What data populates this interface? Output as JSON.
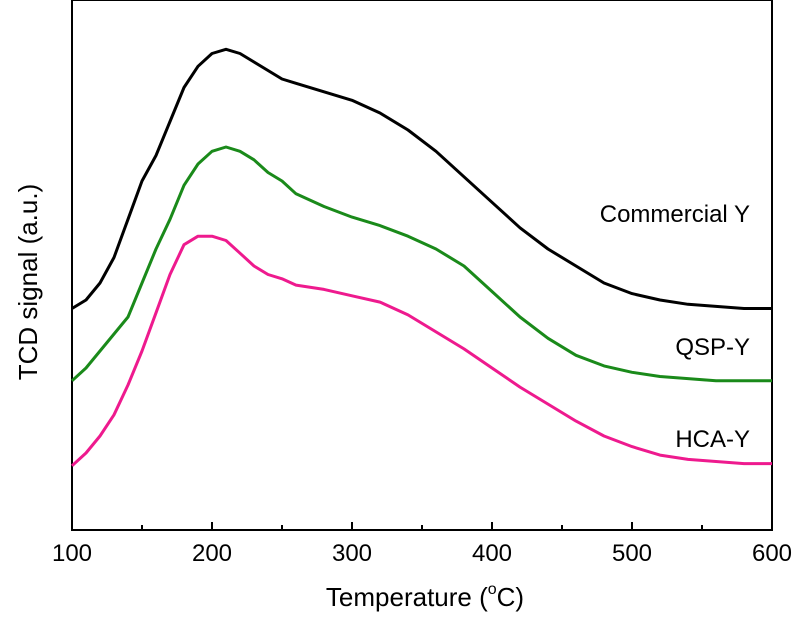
{
  "chart_data": {
    "type": "line",
    "xlabel": "Temperature (°C)",
    "xlabel_main": "Temperature (",
    "xlabel_sup": "o",
    "xlabel_unit": "C)",
    "ylabel": "TCD signal (a.u.)",
    "xlim": [
      100,
      600
    ],
    "ylim": [
      0,
      10
    ],
    "x_ticks": [
      100,
      200,
      300,
      400,
      500,
      600
    ],
    "x_tick_labels": [
      "100",
      "200",
      "300",
      "400",
      "500",
      "600"
    ],
    "y_ticks_shown": false,
    "grid": false,
    "legend": "none",
    "series": [
      {
        "name": "Commercial Y",
        "color": "#000000",
        "x": [
          100,
          110,
          120,
          130,
          140,
          150,
          160,
          170,
          180,
          190,
          200,
          210,
          220,
          230,
          240,
          250,
          260,
          280,
          300,
          320,
          340,
          360,
          380,
          400,
          420,
          440,
          460,
          480,
          500,
          520,
          540,
          560,
          580,
          600
        ],
        "y": [
          4.2,
          4.4,
          4.8,
          5.4,
          6.3,
          7.2,
          7.8,
          8.6,
          9.4,
          9.9,
          10.2,
          10.3,
          10.2,
          10.0,
          9.8,
          9.6,
          9.5,
          9.3,
          9.1,
          8.8,
          8.4,
          7.9,
          7.3,
          6.7,
          6.1,
          5.6,
          5.2,
          4.8,
          4.55,
          4.4,
          4.3,
          4.25,
          4.2,
          4.2
        ]
      },
      {
        "name": "QSP-Y",
        "color": "#1a8a1a",
        "x": [
          100,
          110,
          120,
          130,
          140,
          150,
          160,
          170,
          180,
          190,
          200,
          210,
          220,
          230,
          240,
          250,
          260,
          280,
          300,
          320,
          340,
          360,
          380,
          400,
          420,
          440,
          460,
          480,
          500,
          520,
          540,
          560,
          580,
          600
        ],
        "y": [
          2.5,
          2.8,
          3.2,
          3.6,
          4.0,
          4.8,
          5.6,
          6.3,
          7.1,
          7.6,
          7.9,
          8.0,
          7.9,
          7.7,
          7.4,
          7.2,
          6.9,
          6.6,
          6.35,
          6.15,
          5.9,
          5.6,
          5.2,
          4.6,
          4.0,
          3.5,
          3.1,
          2.85,
          2.7,
          2.6,
          2.55,
          2.5,
          2.5,
          2.5
        ]
      },
      {
        "name": "HCA-Y",
        "color": "#ee1a8e",
        "x": [
          100,
          110,
          120,
          130,
          140,
          150,
          160,
          170,
          180,
          190,
          200,
          210,
          220,
          230,
          240,
          250,
          260,
          280,
          300,
          320,
          340,
          360,
          380,
          400,
          420,
          440,
          460,
          480,
          500,
          520,
          540,
          560,
          580,
          600
        ],
        "y": [
          0.5,
          0.8,
          1.2,
          1.7,
          2.4,
          3.2,
          4.1,
          5.0,
          5.7,
          5.9,
          5.9,
          5.8,
          5.5,
          5.2,
          5.0,
          4.9,
          4.75,
          4.65,
          4.5,
          4.35,
          4.05,
          3.65,
          3.25,
          2.8,
          2.35,
          1.95,
          1.55,
          1.2,
          0.95,
          0.75,
          0.65,
          0.6,
          0.55,
          0.55
        ]
      }
    ]
  }
}
